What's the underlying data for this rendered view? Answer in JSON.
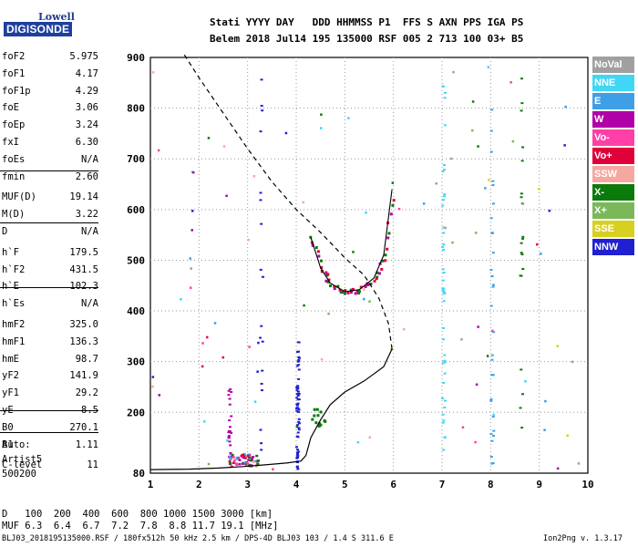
{
  "logo": {
    "line1": "Lowell",
    "line2": "DIGISONDE"
  },
  "header": {
    "labels": "Stati YYYY DAY   DDD HHMMSS P1  FFS S AXN PPS IGA PS",
    "values": "Belem 2018 Jul14 195 135000 RSF 005 2 713 100 03+ B5"
  },
  "params_group1": [
    {
      "label": "foF2",
      "value": "5.975"
    },
    {
      "label": "foF1",
      "value": "4.17"
    },
    {
      "label": "foF1p",
      "value": "4.29"
    },
    {
      "label": "foE",
      "value": "3.06"
    },
    {
      "label": "foEp",
      "value": "3.24"
    },
    {
      "label": "fxI",
      "value": "6.30"
    },
    {
      "label": "foEs",
      "value": "N/A"
    },
    {
      "label": "fmin",
      "value": "2.60"
    }
  ],
  "params_group2": [
    {
      "label": "MUF(D)",
      "value": "19.14"
    },
    {
      "label": "M(D)",
      "value": "3.22"
    },
    {
      "label": "D",
      "value": "N/A"
    }
  ],
  "params_group3": [
    {
      "label": "h`F",
      "value": "179.5"
    },
    {
      "label": "h`F2",
      "value": "431.5"
    },
    {
      "label": "h`E",
      "value": "102.3"
    },
    {
      "label": "h`Es",
      "value": "N/A"
    }
  ],
  "params_group4": [
    {
      "label": "hmF2",
      "value": "325.0"
    },
    {
      "label": "hmF1",
      "value": "136.3"
    },
    {
      "label": "hmE",
      "value": "98.7"
    },
    {
      "label": "yF2",
      "value": "141.9"
    },
    {
      "label": "yF1",
      "value": "29.2"
    },
    {
      "label": "yE",
      "value": "8.5"
    },
    {
      "label": "B0",
      "value": "270.1"
    },
    {
      "label": "B1",
      "value": "1.11"
    }
  ],
  "clevel": {
    "label": "C-level",
    "value": "11"
  },
  "auto": {
    "line1": "Auto:",
    "line2": "Artist5",
    "line3": "500200"
  },
  "legend": [
    {
      "name": "NoVal",
      "color": "#a0a0a0"
    },
    {
      "name": "NNE",
      "color": "#3fd7f5"
    },
    {
      "name": "E",
      "color": "#3f9fe6"
    },
    {
      "name": "W",
      "color": "#b000a8"
    },
    {
      "name": "Vo-",
      "color": "#ff3fa8"
    },
    {
      "name": "Vo+",
      "color": "#e0003a"
    },
    {
      "name": "SSW",
      "color": "#f5a8a0"
    },
    {
      "name": "X-",
      "color": "#0a7a0a"
    },
    {
      "name": "X+",
      "color": "#7ab85a"
    },
    {
      "name": "SSE",
      "color": "#d8d020"
    },
    {
      "name": "NNW",
      "color": "#2020d0"
    }
  ],
  "bottom": {
    "d_label": "D",
    "d_values": "100  200  400  600  800 1000 1500 3000 [km]",
    "muf_label": "MUF",
    "muf_values": "6.3  6.4  6.7  7.2  7.8  8.8 11.7 19.1 [MHz]"
  },
  "footer": {
    "left": "BLJ03_2018195135000.RSF / 180fx512h 50 kHz 2.5 km / DPS-4D BLJ03 103 / 1.4 S 311.6 E",
    "right": "Ion2Png v. 1.3.17"
  },
  "chart_data": {
    "type": "scatter",
    "xlim": [
      1,
      10
    ],
    "ylim": [
      80,
      900
    ],
    "x_ticks": [
      1,
      2,
      3,
      4,
      5,
      6,
      7,
      8,
      9,
      10
    ],
    "y_ticks": [
      80,
      200,
      300,
      400,
      500,
      600,
      700,
      800,
      900
    ],
    "grid": true,
    "profile_solid": [
      [
        1.0,
        87
      ],
      [
        1.8,
        88
      ],
      [
        2.4,
        90
      ],
      [
        2.9,
        93
      ],
      [
        3.3,
        96
      ],
      [
        3.8,
        100
      ],
      [
        4.1,
        104
      ],
      [
        4.2,
        115
      ],
      [
        4.3,
        150
      ],
      [
        4.5,
        185
      ],
      [
        4.7,
        215
      ],
      [
        5.0,
        240
      ],
      [
        5.4,
        262
      ],
      [
        5.8,
        290
      ],
      [
        5.97,
        325
      ]
    ],
    "profile_dashed": [
      [
        1.7,
        905
      ],
      [
        2.0,
        860
      ],
      [
        2.5,
        790
      ],
      [
        3.0,
        720
      ],
      [
        3.5,
        655
      ],
      [
        4.0,
        600
      ],
      [
        4.5,
        555
      ],
      [
        5.0,
        505
      ],
      [
        5.4,
        470
      ],
      [
        5.7,
        425
      ],
      [
        5.9,
        375
      ],
      [
        5.97,
        325
      ]
    ],
    "trace_f2": [
      [
        4.3,
        545
      ],
      [
        4.5,
        485
      ],
      [
        4.7,
        455
      ],
      [
        5.0,
        438
      ],
      [
        5.3,
        442
      ],
      [
        5.6,
        465
      ],
      [
        5.8,
        510
      ],
      [
        5.97,
        640
      ]
    ]
  }
}
